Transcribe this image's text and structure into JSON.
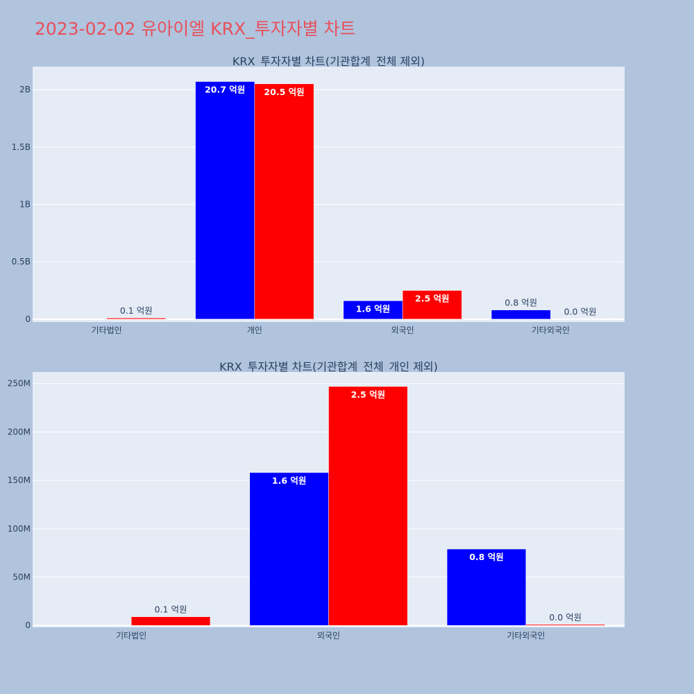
{
  "page_title": "2023-02-02 유아이엘 KRX_투자자별 차트",
  "colors": {
    "background": "#b0c4de",
    "plot_bg": "#e5ecf6",
    "title": "#e8505b",
    "series_a": "#0000ff",
    "series_b": "#ff0000",
    "text": "#2a3f5f"
  },
  "chart_data": [
    {
      "type": "bar",
      "title": "KRX_투자자별 차트(기관합계_전체 제외)",
      "categories": [
        "기타법인",
        "개인",
        "외국인",
        "기타외국인"
      ],
      "series": [
        {
          "color": "#0000ff",
          "values": [
            0,
            2070000000,
            160000000,
            80000000
          ],
          "labels": [
            "",
            "20.7 억원",
            "1.6 억원",
            "0.8 억원"
          ]
        },
        {
          "color": "#ff0000",
          "values": [
            10000000,
            2050000000,
            250000000,
            1000000
          ],
          "labels": [
            "0.1 억원",
            "20.5 억원",
            "2.5 억원",
            "0.0 억원"
          ]
        }
      ],
      "ylim": [
        -25000000,
        2200000000
      ],
      "yticks": [
        0,
        500000000,
        1000000000,
        1500000000,
        2000000000
      ],
      "yticklabels": [
        "0",
        "0.5B",
        "1B",
        "1.5B",
        "2B"
      ],
      "grid": true,
      "legend": "none"
    },
    {
      "type": "bar",
      "title": "KRX_투자자별 차트(기관합계_전체_개인 제외)",
      "categories": [
        "기타법인",
        "외국인",
        "기타외국인"
      ],
      "series": [
        {
          "color": "#0000ff",
          "values": [
            0,
            158000000,
            79000000
          ],
          "labels": [
            "",
            "1.6 억원",
            "0.8 억원"
          ]
        },
        {
          "color": "#ff0000",
          "values": [
            9000000,
            247000000,
            1000000
          ],
          "labels": [
            "0.1 억원",
            "2.5 억원",
            "0.0 억원"
          ]
        }
      ],
      "ylim": [
        -2000000,
        262000000
      ],
      "yticks": [
        0,
        50000000,
        100000000,
        150000000,
        200000000,
        250000000
      ],
      "yticklabels": [
        "0",
        "50M",
        "100M",
        "150M",
        "200M",
        "250M"
      ],
      "grid": true,
      "legend": "none"
    }
  ]
}
